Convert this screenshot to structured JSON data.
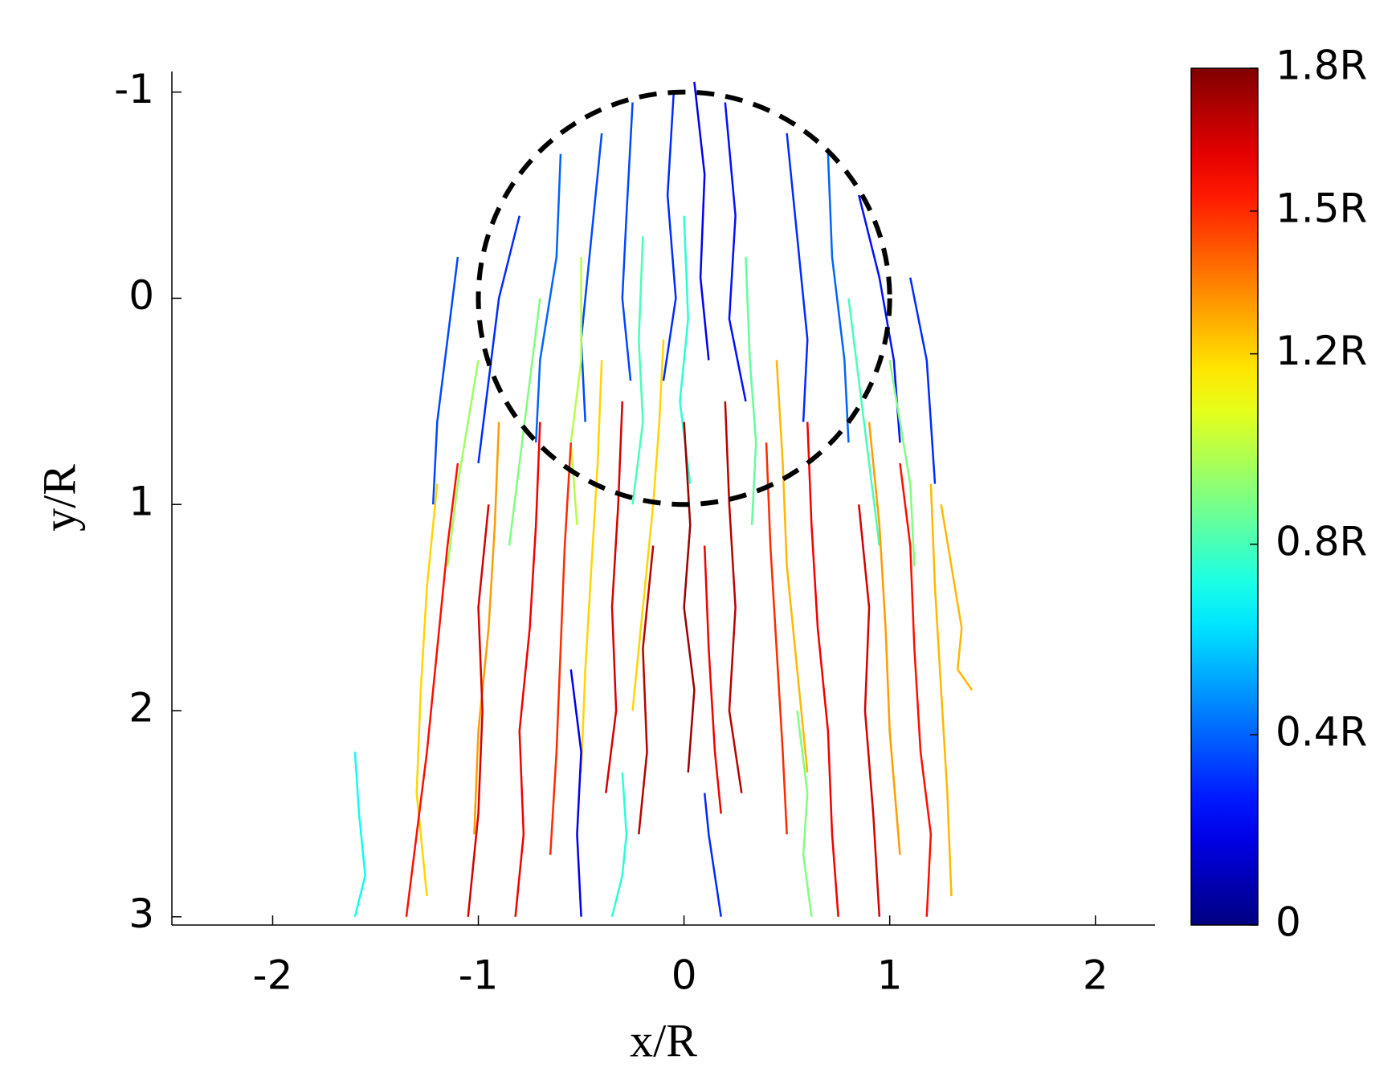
{
  "chart_data": {
    "type": "trajectory",
    "x_label": "x/R",
    "y_label": "y/R",
    "xlim": [
      -2.49,
      2.29
    ],
    "ylim": [
      3.04,
      -1.1
    ],
    "xticks": [
      -2,
      -1,
      0,
      1,
      2
    ],
    "yticks": [
      -1,
      0,
      1,
      2,
      3
    ],
    "reference_circle": {
      "center": [
        0,
        0
      ],
      "radius": 1
    },
    "colormap": "jet",
    "clim": [
      0,
      1.8
    ],
    "cticks": [
      {
        "value": 0,
        "label": "0"
      },
      {
        "value": 0.4,
        "label": "0.4R"
      },
      {
        "value": 0.8,
        "label": "0.8R"
      },
      {
        "value": 1.2,
        "label": "1.2R"
      },
      {
        "value": 1.5,
        "label": "1.5R"
      },
      {
        "value": 1.8,
        "label": "1.8R"
      }
    ],
    "trajectories": [
      {
        "x": [
          -0.05,
          -0.08,
          -0.04,
          -0.1
        ],
        "y": [
          -1.0,
          -0.5,
          0,
          0.4
        ],
        "c": 0.3
      },
      {
        "x": [
          0.2,
          0.25,
          0.22,
          0.3
        ],
        "y": [
          -0.95,
          -0.4,
          0.1,
          0.5
        ],
        "c": 0.25
      },
      {
        "x": [
          -0.4,
          -0.45,
          -0.5,
          -0.48
        ],
        "y": [
          -0.8,
          -0.3,
          0.2,
          0.6
        ],
        "c": 0.35
      },
      {
        "x": [
          0.5,
          0.55,
          0.6,
          0.58
        ],
        "y": [
          -0.8,
          -0.3,
          0.2,
          0.6
        ],
        "c": 0.3
      },
      {
        "x": [
          -0.8,
          -0.9,
          -0.95,
          -1.0
        ],
        "y": [
          -0.4,
          0,
          0.4,
          0.8
        ],
        "c": 0.3
      },
      {
        "x": [
          0.85,
          0.95,
          1.02,
          1.05
        ],
        "y": [
          -0.5,
          -0.1,
          0.3,
          0.7
        ],
        "c": 0.25
      },
      {
        "x": [
          -1.1,
          -1.15,
          -1.2,
          -1.22
        ],
        "y": [
          -0.2,
          0.2,
          0.6,
          1.0
        ],
        "c": 0.35
      },
      {
        "x": [
          1.1,
          1.18,
          1.2,
          1.22
        ],
        "y": [
          -0.1,
          0.3,
          0.6,
          0.9
        ],
        "c": 0.3
      },
      {
        "x": [
          -0.6,
          -0.62,
          -0.7,
          -0.72
        ],
        "y": [
          -0.7,
          -0.2,
          0.3,
          0.7
        ],
        "c": 0.4
      },
      {
        "x": [
          0.7,
          0.72,
          0.78,
          0.8
        ],
        "y": [
          -0.7,
          -0.2,
          0.3,
          0.7
        ],
        "c": 0.4
      },
      {
        "x": [
          0.05,
          0.1,
          0.08,
          0.12
        ],
        "y": [
          -1.05,
          -0.6,
          -0.1,
          0.3
        ],
        "c": 0.2
      },
      {
        "x": [
          -0.25,
          -0.28,
          -0.3,
          -0.26
        ],
        "y": [
          -0.95,
          -0.4,
          0.0,
          0.4
        ],
        "c": 0.35
      },
      {
        "x": [
          -0.2,
          -0.22,
          -0.2,
          -0.25
        ],
        "y": [
          -0.3,
          0.2,
          0.6,
          1.0
        ],
        "c": 0.8
      },
      {
        "x": [
          0.3,
          0.32,
          0.35,
          0.33
        ],
        "y": [
          -0.2,
          0.3,
          0.7,
          1.1
        ],
        "c": 0.85
      },
      {
        "x": [
          -0.7,
          -0.75,
          -0.8,
          -0.85
        ],
        "y": [
          0,
          0.4,
          0.8,
          1.2
        ],
        "c": 0.9
      },
      {
        "x": [
          0.8,
          0.85,
          0.9,
          0.95
        ],
        "y": [
          0,
          0.4,
          0.8,
          1.2
        ],
        "c": 0.8
      },
      {
        "x": [
          0,
          0.02,
          -0.02,
          0.03
        ],
        "y": [
          -0.4,
          0.1,
          0.5,
          0.9
        ],
        "c": 0.75
      },
      {
        "x": [
          -1.0,
          -1.05,
          -1.1,
          -1.15
        ],
        "y": [
          0.3,
          0.6,
          0.9,
          1.3
        ],
        "c": 0.95
      },
      {
        "x": [
          1.0,
          1.05,
          1.1,
          1.12
        ],
        "y": [
          0.3,
          0.6,
          0.9,
          1.3
        ],
        "c": 0.9
      },
      {
        "x": [
          -0.5,
          -0.5,
          -0.55,
          -0.52
        ],
        "y": [
          -0.2,
          0.3,
          0.7,
          1.1
        ],
        "c": 1.0
      },
      {
        "x": [
          -0.4,
          -0.42,
          -0.45,
          -0.48,
          -0.5
        ],
        "y": [
          0.3,
          0.8,
          1.3,
          1.8,
          2.3
        ],
        "c": 1.2
      },
      {
        "x": [
          0.45,
          0.48,
          0.5,
          0.55,
          0.6
        ],
        "y": [
          0.3,
          0.8,
          1.3,
          1.8,
          2.3
        ],
        "c": 1.25
      },
      {
        "x": [
          -1.2,
          -1.25,
          -1.28,
          -1.3,
          -1.25
        ],
        "y": [
          0.9,
          1.4,
          1.9,
          2.4,
          2.9
        ],
        "c": 1.2
      },
      {
        "x": [
          1.2,
          1.22,
          1.25,
          1.28,
          1.3
        ],
        "y": [
          0.9,
          1.4,
          1.9,
          2.4,
          2.9
        ],
        "c": 1.25
      },
      {
        "x": [
          -0.9,
          -0.92,
          -0.95,
          -1.0,
          -1.02
        ],
        "y": [
          0.6,
          1.1,
          1.6,
          2.1,
          2.6
        ],
        "c": 1.3
      },
      {
        "x": [
          0.9,
          0.95,
          0.98,
          1.0,
          1.05
        ],
        "y": [
          0.6,
          1.1,
          1.6,
          2.1,
          2.7
        ],
        "c": 1.3
      },
      {
        "x": [
          -0.1,
          -0.12,
          -0.15,
          -0.2,
          -0.25
        ],
        "y": [
          0.2,
          0.6,
          1.0,
          1.5,
          2.0
        ],
        "c": 1.2
      },
      {
        "x": [
          1.25,
          1.3,
          1.35,
          1.33,
          1.4
        ],
        "y": [
          1.0,
          1.3,
          1.6,
          1.8,
          1.9
        ],
        "c": 1.25
      },
      {
        "x": [
          -0.3,
          -0.32,
          -0.35,
          -0.33,
          -0.38
        ],
        "y": [
          0.5,
          1.0,
          1.5,
          2.0,
          2.4
        ],
        "c": 1.65
      },
      {
        "x": [
          0.2,
          0.22,
          0.25,
          0.22,
          0.28
        ],
        "y": [
          0.5,
          1.0,
          1.5,
          2.0,
          2.4
        ],
        "c": 1.7
      },
      {
        "x": [
          -0.7,
          -0.72,
          -0.75,
          -0.8,
          -0.78,
          -0.82
        ],
        "y": [
          0.6,
          1.1,
          1.6,
          2.1,
          2.6,
          3.0
        ],
        "c": 1.6
      },
      {
        "x": [
          0.6,
          0.62,
          0.65,
          0.7,
          0.72,
          0.75
        ],
        "y": [
          0.6,
          1.1,
          1.6,
          2.1,
          2.6,
          3.0
        ],
        "c": 1.6
      },
      {
        "x": [
          -1.1,
          -1.15,
          -1.2,
          -1.25,
          -1.3,
          -1.35
        ],
        "y": [
          0.8,
          1.2,
          1.7,
          2.2,
          2.6,
          3.0
        ],
        "c": 1.55
      },
      {
        "x": [
          1.05,
          1.1,
          1.12,
          1.15,
          1.2,
          1.18
        ],
        "y": [
          0.8,
          1.2,
          1.7,
          2.2,
          2.6,
          3.0
        ],
        "c": 1.55
      },
      {
        "x": [
          0,
          0.03,
          0,
          0.05,
          0.02
        ],
        "y": [
          0.6,
          1.1,
          1.5,
          1.9,
          2.3
        ],
        "c": 1.75
      },
      {
        "x": [
          -0.55,
          -0.58,
          -0.6,
          -0.62,
          -0.65
        ],
        "y": [
          0.7,
          1.2,
          1.7,
          2.2,
          2.7
        ],
        "c": 1.5
      },
      {
        "x": [
          0.4,
          0.42,
          0.45,
          0.48,
          0.5
        ],
        "y": [
          0.7,
          1.2,
          1.7,
          2.2,
          2.6
        ],
        "c": 1.5
      },
      {
        "x": [
          -0.95,
          -1.0,
          -0.98,
          -1.0,
          -1.05
        ],
        "y": [
          1.0,
          1.5,
          2.0,
          2.5,
          3.0
        ],
        "c": 1.65
      },
      {
        "x": [
          0.85,
          0.9,
          0.88,
          0.92,
          0.95
        ],
        "y": [
          1.0,
          1.5,
          2.0,
          2.5,
          3.0
        ],
        "c": 1.65
      },
      {
        "x": [
          -0.15,
          -0.2,
          -0.18,
          -0.22
        ],
        "y": [
          1.2,
          1.7,
          2.2,
          2.6
        ],
        "c": 1.7
      },
      {
        "x": [
          0.1,
          0.12,
          0.15,
          0.18
        ],
        "y": [
          1.2,
          1.7,
          2.2,
          2.5
        ],
        "c": 1.6
      },
      {
        "x": [
          -1.6,
          -1.58,
          -1.55,
          -1.6
        ],
        "y": [
          2.2,
          2.5,
          2.8,
          3.0
        ],
        "c": 0.7
      },
      {
        "x": [
          -0.3,
          -0.28,
          -0.3,
          -0.35
        ],
        "y": [
          2.3,
          2.6,
          2.8,
          3.0
        ],
        "c": 0.75
      },
      {
        "x": [
          0.1,
          0.12,
          0.15,
          0.18
        ],
        "y": [
          2.4,
          2.6,
          2.8,
          3.0
        ],
        "c": 0.3
      },
      {
        "x": [
          -0.55,
          -0.5,
          -0.52,
          -0.5
        ],
        "y": [
          1.8,
          2.2,
          2.6,
          3.0
        ],
        "c": 0.2
      },
      {
        "x": [
          0.55,
          0.6,
          0.58,
          0.62
        ],
        "y": [
          2.0,
          2.4,
          2.7,
          3.0
        ],
        "c": 0.9
      }
    ]
  }
}
